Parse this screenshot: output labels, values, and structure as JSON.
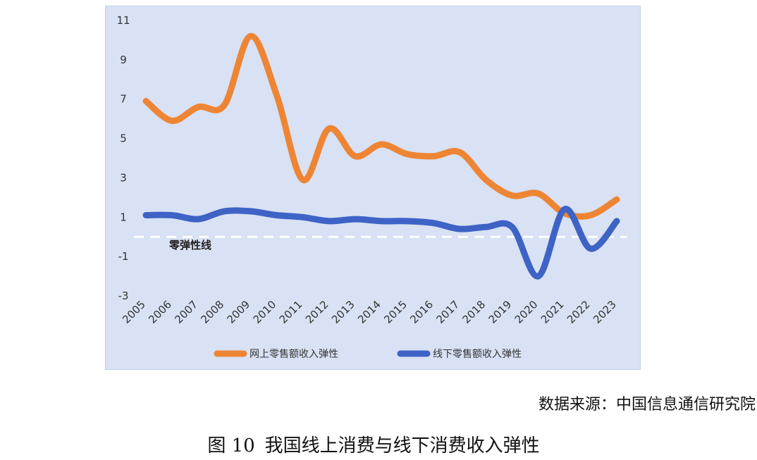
{
  "chart_data": {
    "type": "line",
    "categories": [
      "2005",
      "2006",
      "2007",
      "2008",
      "2009",
      "2010",
      "2011",
      "2012",
      "2013",
      "2014",
      "2015",
      "2016",
      "2017",
      "2018",
      "2019",
      "2020",
      "2021",
      "2022",
      "2023"
    ],
    "series": [
      {
        "name": "网上零售额收入弹性",
        "color": "#ee8534",
        "values": [
          6.9,
          5.9,
          6.6,
          6.7,
          10.2,
          7.2,
          2.9,
          5.5,
          4.1,
          4.7,
          4.2,
          4.1,
          4.3,
          2.9,
          2.1,
          2.2,
          1.2,
          1.1,
          1.9
        ]
      },
      {
        "name": "线下零售额收入弹性",
        "color": "#3e63c6",
        "values": [
          1.1,
          1.1,
          0.9,
          1.3,
          1.3,
          1.1,
          1.0,
          0.8,
          0.9,
          0.8,
          0.8,
          0.7,
          0.4,
          0.5,
          0.5,
          -2.0,
          1.4,
          -0.6,
          0.8
        ]
      }
    ],
    "y_ticks": [
      "11",
      "9",
      "7",
      "5",
      "3",
      "1",
      "-1",
      "-3"
    ],
    "ylim": [
      -3,
      11
    ],
    "reference_line": {
      "value": 0,
      "label": "零弹性线",
      "color": "#ffffff"
    },
    "legend_position": "bottom"
  },
  "source_text": "数据来源：中国信息通信研究院",
  "caption": {
    "number": "图 10",
    "text": "我国线上消费与线下消费收入弹性"
  }
}
